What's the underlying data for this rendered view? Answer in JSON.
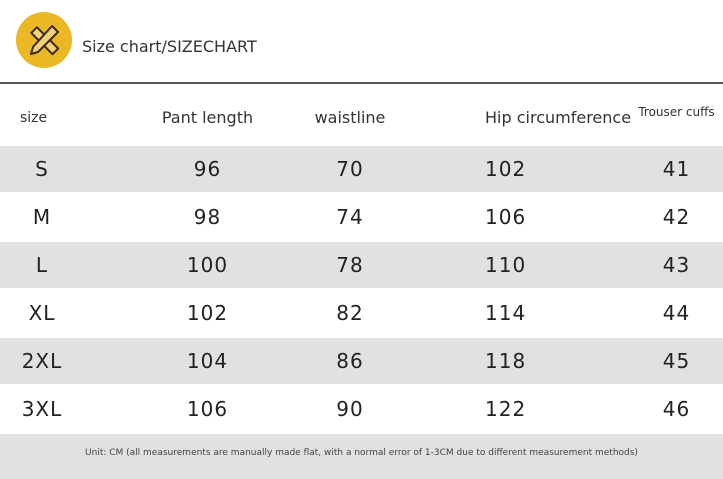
{
  "header": {
    "title": "Size chart/SIZECHART",
    "icon": "ruler-pencil-icon",
    "accent": "#e9b824"
  },
  "table": {
    "columns": [
      "size",
      "Pant length",
      "waistline",
      "Hip circumference",
      "Trouser cuffs"
    ],
    "rows": [
      [
        "S",
        "96",
        "70",
        "102",
        "41"
      ],
      [
        "M",
        "98",
        "74",
        "106",
        "42"
      ],
      [
        "L",
        "100",
        "78",
        "110",
        "43"
      ],
      [
        "XL",
        "102",
        "82",
        "114",
        "44"
      ],
      [
        "2XL",
        "104",
        "86",
        "118",
        "45"
      ],
      [
        "3XL",
        "106",
        "90",
        "122",
        "46"
      ]
    ]
  },
  "footer": {
    "note": "Unit: CM (all measurements are manually made flat, with a normal error of 1-3CM due to different measurement methods)"
  }
}
